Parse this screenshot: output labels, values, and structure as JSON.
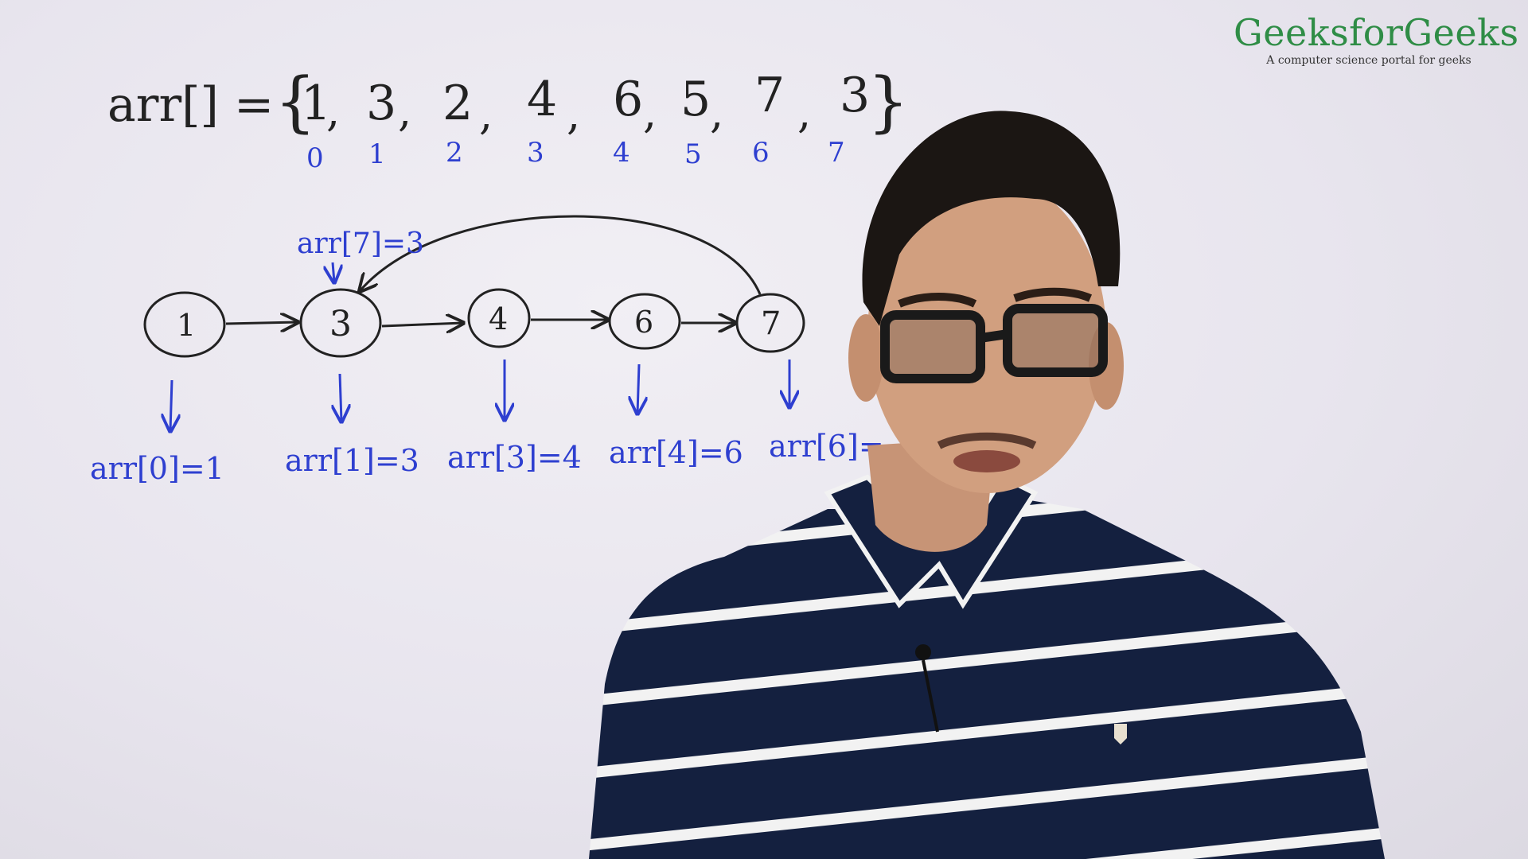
{
  "video": {
    "logo": {
      "title": "GeeksforGeeks",
      "tagline": "A computer science portal for geeks"
    },
    "board": {
      "array_label": "arr[] =",
      "array_values": [
        "1",
        "3",
        "2",
        "4",
        "6",
        "5",
        "7",
        "3"
      ],
      "indices": [
        "0",
        "1",
        "2",
        "3",
        "4",
        "5",
        "6",
        "7"
      ],
      "top_annotation": "arr[7]=3",
      "nodes": [
        "1",
        "3",
        "4",
        "6",
        "7"
      ],
      "node_labels": [
        "arr[0]=1",
        "arr[1]=3",
        "arr[3]=4",
        "arr[4]=6",
        "arr[6]="
      ]
    },
    "colors": {
      "board": "#e8e5ee",
      "black_ink": "#222222",
      "blue_ink": "#2e3fd0",
      "logo_green": "#2f8d46",
      "shirt_navy": "#14203f",
      "shirt_stripe": "#f2f2f2"
    }
  }
}
